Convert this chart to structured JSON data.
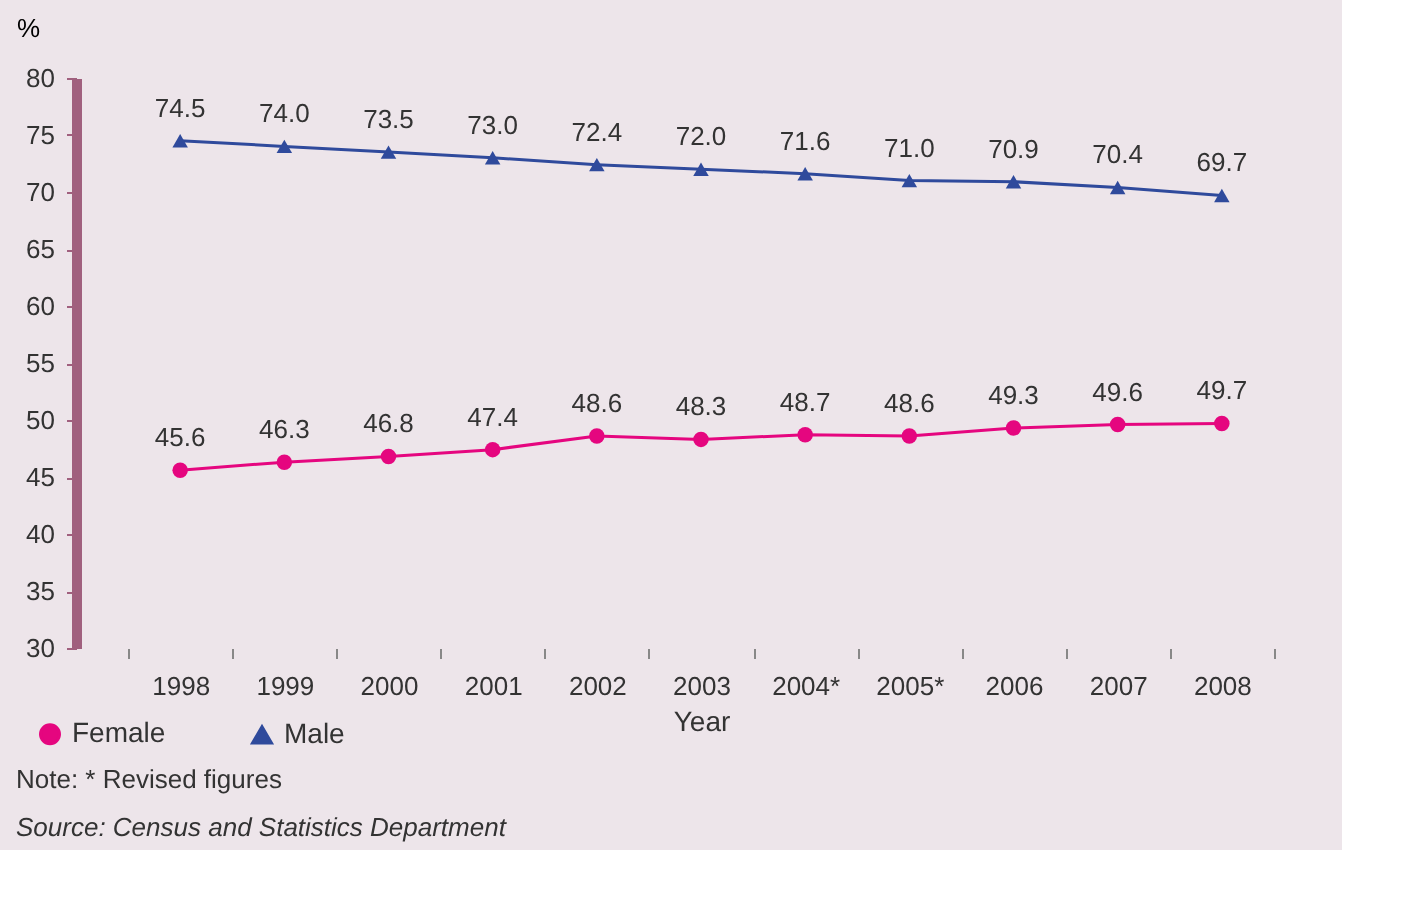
{
  "chart_data": {
    "type": "line",
    "xlabel": "Year",
    "ylabel": "%",
    "categories": [
      "1998",
      "1999",
      "2000",
      "2001",
      "2002",
      "2003",
      "2004*",
      "2005*",
      "2006",
      "2007",
      "2008"
    ],
    "series": [
      {
        "name": "Female",
        "color": "#e5067f",
        "marker": "circle",
        "values": [
          45.6,
          46.3,
          46.8,
          47.4,
          48.6,
          48.3,
          48.7,
          48.6,
          49.3,
          49.6,
          49.7
        ]
      },
      {
        "name": "Male",
        "color": "#2f4a9c",
        "marker": "triangle",
        "values": [
          74.5,
          74.0,
          73.5,
          73.0,
          72.4,
          72.0,
          71.6,
          71.0,
          70.9,
          70.4,
          69.7
        ],
        "value_labels": [
          "74.5",
          "74.0",
          "73.5",
          "73.0",
          "72.4",
          "72.0",
          "71.6",
          "71.0",
          "70.9",
          "70.4",
          "69.7"
        ]
      }
    ],
    "ylim": [
      30,
      80
    ],
    "yticks": [
      30,
      35,
      40,
      45,
      50,
      55,
      60,
      65,
      70,
      75,
      80
    ],
    "grid": false,
    "legend": "bottom left",
    "data_labels": true,
    "annotations": [
      "Note: * Revised figures",
      "Source: Census and Statistics Department"
    ]
  }
}
